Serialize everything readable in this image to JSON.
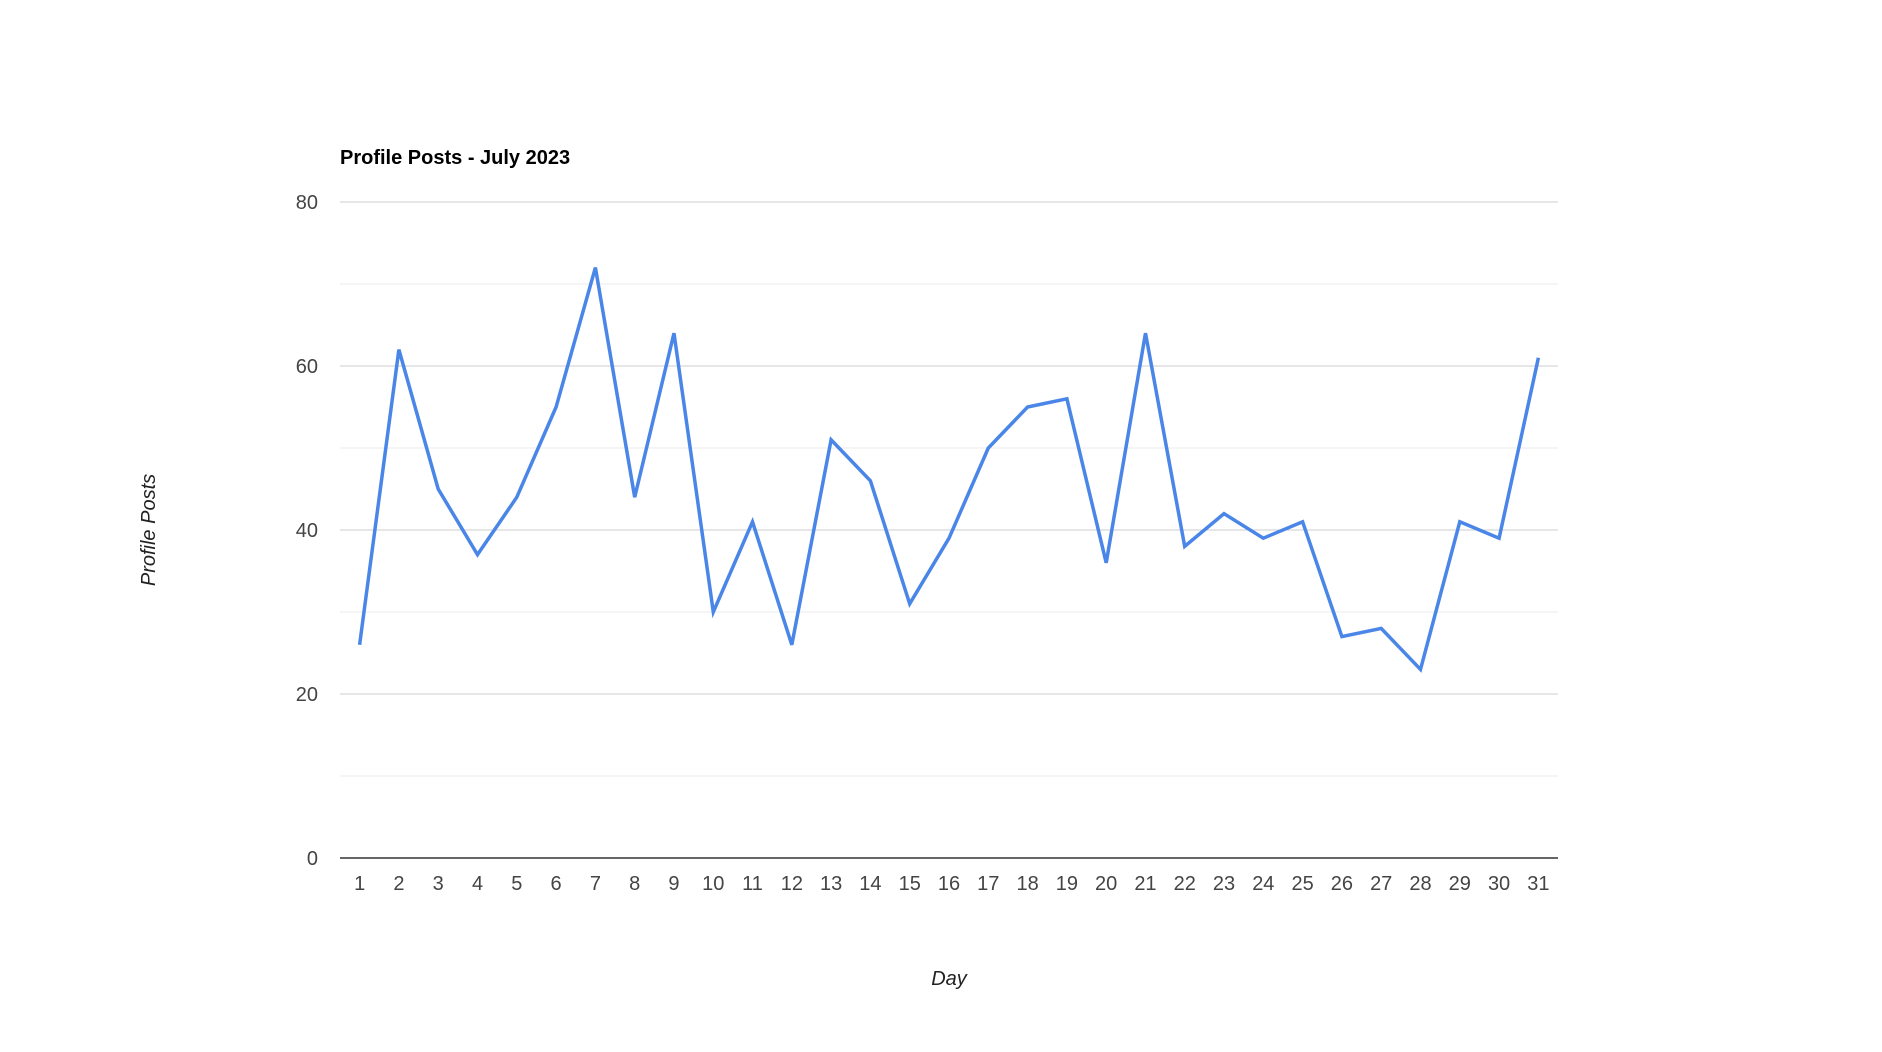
{
  "chart_data": {
    "type": "line",
    "title": "Profile Posts - July 2023",
    "xlabel": "Day",
    "ylabel": "Profile Posts",
    "categories": [
      "1",
      "2",
      "3",
      "4",
      "5",
      "6",
      "7",
      "8",
      "9",
      "10",
      "11",
      "12",
      "13",
      "14",
      "15",
      "16",
      "17",
      "18",
      "19",
      "20",
      "21",
      "22",
      "23",
      "24",
      "25",
      "26",
      "27",
      "28",
      "29",
      "30",
      "31"
    ],
    "series": [
      {
        "values": [
          26,
          62,
          45,
          37,
          44,
          55,
          72,
          44,
          64,
          30,
          41,
          26,
          51,
          46,
          31,
          39,
          50,
          55,
          56,
          36,
          64,
          38,
          42,
          39,
          41,
          27,
          28,
          23,
          41,
          39,
          61
        ],
        "color": "#4a86e8"
      }
    ],
    "ylim": [
      0,
      80
    ],
    "yticks": [
      "0",
      "20",
      "40",
      "60",
      "80"
    ],
    "grid": true,
    "legend": "none",
    "colors": {
      "gridline_major": "#cccccc",
      "gridline_minor": "#ebebeb",
      "baseline": "#333333"
    }
  }
}
